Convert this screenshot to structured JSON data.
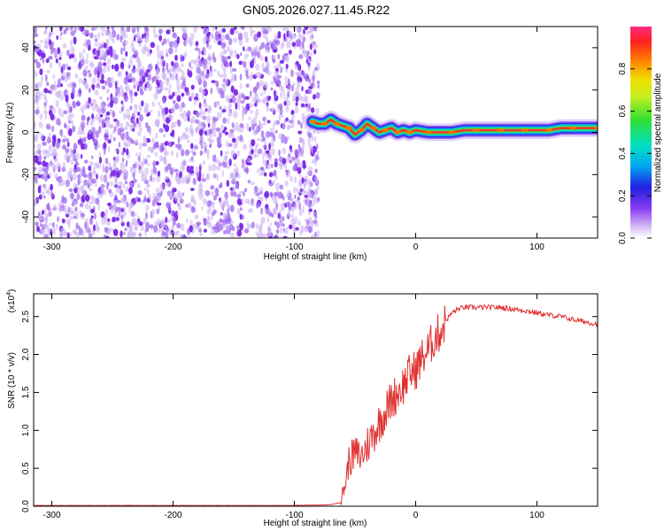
{
  "title": "GN05.2026.027.11.45.R22",
  "colors": {
    "snr_line": "#e03030",
    "scatter_dot": "#7a28e8",
    "scatter_light": "#c9aef2"
  },
  "chart_data": [
    {
      "type": "heatmap",
      "xlabel": "Height of straight line (km)",
      "ylabel": "Frequency (Hz)",
      "xlim": [
        -315,
        150
      ],
      "ylim": [
        -50,
        50
      ],
      "xticks": [
        -300,
        -200,
        -100,
        0,
        100
      ],
      "yticks": [
        -40,
        -20,
        0,
        20,
        40
      ],
      "xtick_labels": [
        "-300",
        "-200",
        "-100",
        "0",
        "100"
      ],
      "ytick_labels": [
        "-40",
        "-20",
        "0",
        "20",
        "40"
      ],
      "noise_region_x": [
        -315,
        -80
      ],
      "colorbar": {
        "label": "Normalized spectral amplitude",
        "range": [
          0.0,
          1.0
        ],
        "ticks": [
          0.0,
          0.2,
          0.4,
          0.6,
          0.8
        ],
        "tick_labels": [
          "0.0",
          "0.2",
          "0.4",
          "0.6",
          "0.8"
        ]
      },
      "signal_track": {
        "x": [
          -85,
          -80,
          -75,
          -70,
          -65,
          -60,
          -55,
          -50,
          -45,
          -40,
          -35,
          -30,
          -25,
          -20,
          -15,
          -10,
          -5,
          0,
          10,
          20,
          30,
          40,
          50,
          60,
          70,
          80,
          90,
          100,
          110,
          120,
          130,
          140,
          150
        ],
        "y": [
          5,
          4,
          4,
          6,
          4,
          3,
          2,
          -1,
          1,
          4,
          2,
          0,
          1,
          2,
          0,
          1,
          0,
          1,
          0,
          0,
          0,
          1,
          1,
          1,
          1,
          1,
          1,
          1,
          1,
          2,
          2,
          2,
          2
        ]
      }
    },
    {
      "type": "line",
      "xlabel": "Height of straight line (km)",
      "ylabel": "SNR (10 * v/v)",
      "exponent_label_base": "(x10",
      "exponent_label_power": "4",
      "exponent_label_close": ")",
      "xlim": [
        -315,
        150
      ],
      "ylim": [
        0,
        2.8
      ],
      "xticks": [
        -300,
        -200,
        -100,
        0,
        100
      ],
      "yticks": [
        0.0,
        0.5,
        1.0,
        1.5,
        2.0,
        2.5
      ],
      "xtick_labels": [
        "-300",
        "-200",
        "-100",
        "0",
        "100"
      ],
      "ytick_labels": [
        "0.0",
        "0.5",
        "1.0",
        "1.5",
        "2.0",
        "2.5"
      ],
      "series": [
        {
          "x": [
            -315,
            -200,
            -100,
            -70,
            -62,
            -58,
            -55,
            -50,
            -45,
            -40,
            -35,
            -30,
            -25,
            -20,
            -15,
            -10,
            -5,
            0,
            5,
            10,
            15,
            20,
            25,
            30,
            35,
            40,
            50,
            60,
            70,
            80,
            90,
            100,
            110,
            120,
            130,
            140,
            150
          ],
          "y": [
            0.01,
            0.01,
            0.01,
            0.02,
            0.05,
            0.3,
            0.6,
            0.7,
            0.65,
            0.8,
            0.95,
            1.1,
            1.25,
            1.4,
            1.5,
            1.6,
            1.75,
            1.8,
            1.95,
            2.05,
            2.2,
            2.3,
            2.45,
            2.55,
            2.6,
            2.62,
            2.62,
            2.62,
            2.62,
            2.6,
            2.58,
            2.55,
            2.52,
            2.5,
            2.46,
            2.43,
            2.4
          ]
        }
      ]
    }
  ]
}
